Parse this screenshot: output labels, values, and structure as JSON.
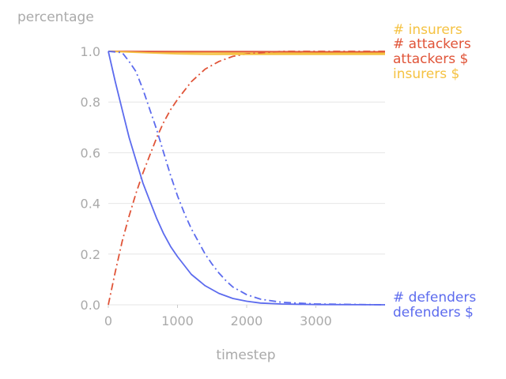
{
  "chart_data": {
    "type": "line",
    "ylabel": "percentage",
    "xlabel": "timestep",
    "xlim": [
      0,
      4000
    ],
    "ylim": [
      0,
      1.0
    ],
    "xticks": [
      0,
      1000,
      2000,
      3000
    ],
    "xtick_labels": [
      "0",
      "1000",
      "2000",
      "3000"
    ],
    "yticks": [
      0.0,
      0.2,
      0.4,
      0.6,
      0.8,
      1.0
    ],
    "ytick_labels": [
      "0.0",
      "0.2",
      "0.4",
      "0.6",
      "0.8",
      "1.0"
    ],
    "grid": "horizontal",
    "legend_placement": "right, inline labels",
    "series": [
      {
        "name": "# insurers",
        "color": "#f5c242",
        "style": "solid",
        "points": [
          [
            0,
            1.0
          ],
          [
            500,
            0.998
          ],
          [
            1000,
            0.996
          ],
          [
            1500,
            0.994
          ],
          [
            2000,
            0.993
          ],
          [
            3000,
            0.993
          ],
          [
            4000,
            0.993
          ]
        ]
      },
      {
        "name": "# attackers",
        "color": "#e05438",
        "style": "dashdot",
        "points": [
          [
            0,
            0.0
          ],
          [
            100,
            0.13
          ],
          [
            200,
            0.25
          ],
          [
            300,
            0.35
          ],
          [
            400,
            0.44
          ],
          [
            500,
            0.52
          ],
          [
            600,
            0.59
          ],
          [
            700,
            0.66
          ],
          [
            800,
            0.72
          ],
          [
            900,
            0.77
          ],
          [
            1000,
            0.81
          ],
          [
            1200,
            0.88
          ],
          [
            1400,
            0.93
          ],
          [
            1600,
            0.96
          ],
          [
            1800,
            0.98
          ],
          [
            2000,
            0.99
          ],
          [
            2500,
            1.0
          ],
          [
            4000,
            1.0
          ]
        ]
      },
      {
        "name": "attackers $",
        "color": "#e05438",
        "style": "solid",
        "points": [
          [
            0,
            1.0
          ],
          [
            1000,
            0.999
          ],
          [
            2000,
            0.999
          ],
          [
            3000,
            0.998
          ],
          [
            4000,
            0.998
          ]
        ]
      },
      {
        "name": "insurers $",
        "color": "#f5c242",
        "style": "solid",
        "points": [
          [
            0,
            1.0
          ],
          [
            500,
            0.995
          ],
          [
            1000,
            0.99
          ],
          [
            1500,
            0.988
          ],
          [
            2000,
            0.988
          ],
          [
            3000,
            0.988
          ],
          [
            4000,
            0.988
          ]
        ]
      },
      {
        "name": "# defenders",
        "color": "#5c6bee",
        "style": "solid",
        "points": [
          [
            0,
            1.0
          ],
          [
            100,
            0.88
          ],
          [
            200,
            0.77
          ],
          [
            300,
            0.66
          ],
          [
            400,
            0.57
          ],
          [
            500,
            0.48
          ],
          [
            600,
            0.41
          ],
          [
            700,
            0.34
          ],
          [
            800,
            0.28
          ],
          [
            900,
            0.23
          ],
          [
            1000,
            0.19
          ],
          [
            1200,
            0.12
          ],
          [
            1400,
            0.075
          ],
          [
            1600,
            0.045
          ],
          [
            1800,
            0.025
          ],
          [
            2000,
            0.014
          ],
          [
            2200,
            0.007
          ],
          [
            2500,
            0.003
          ],
          [
            3000,
            0.001
          ],
          [
            4000,
            0.0
          ]
        ]
      },
      {
        "name": "defenders $",
        "color": "#5c6bee",
        "style": "dashdot",
        "points": [
          [
            0,
            1.0
          ],
          [
            200,
            0.995
          ],
          [
            300,
            0.96
          ],
          [
            400,
            0.92
          ],
          [
            500,
            0.85
          ],
          [
            600,
            0.77
          ],
          [
            700,
            0.69
          ],
          [
            800,
            0.6
          ],
          [
            900,
            0.51
          ],
          [
            1000,
            0.43
          ],
          [
            1100,
            0.36
          ],
          [
            1200,
            0.3
          ],
          [
            1300,
            0.25
          ],
          [
            1400,
            0.2
          ],
          [
            1500,
            0.16
          ],
          [
            1600,
            0.125
          ],
          [
            1700,
            0.095
          ],
          [
            1800,
            0.07
          ],
          [
            1900,
            0.055
          ],
          [
            2000,
            0.04
          ],
          [
            2200,
            0.022
          ],
          [
            2500,
            0.01
          ],
          [
            3000,
            0.003
          ],
          [
            4000,
            0.0
          ]
        ]
      }
    ]
  }
}
